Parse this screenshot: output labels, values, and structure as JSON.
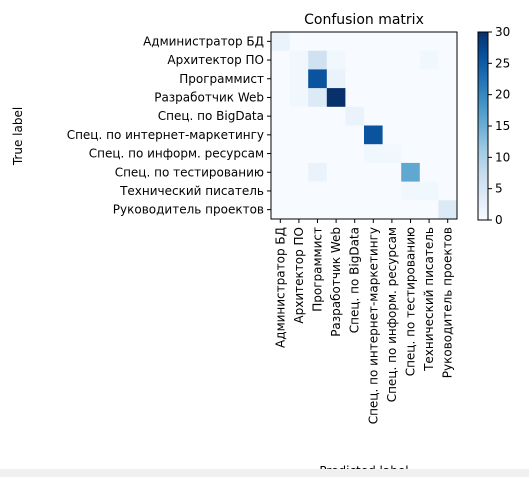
{
  "chart_data": {
    "type": "heatmap",
    "title": "Confusion matrix",
    "xlabel": "Predicted label",
    "ylabel": "True label",
    "labels": [
      "Администратор БД",
      "Архитектор ПО",
      "Программист",
      "Разработчик Web",
      "Спец. по BigData",
      "Спец. по интернет-маркетингу",
      "Спец. по информ. ресурсам",
      "Спец. по тестированию",
      "Технический писатель",
      "Руководитель проектов"
    ],
    "matrix": [
      [
        2,
        0,
        0,
        0,
        0,
        0,
        0,
        0,
        0,
        0
      ],
      [
        0,
        1,
        6,
        1,
        0,
        0,
        0,
        0,
        1,
        0
      ],
      [
        0,
        1,
        26,
        2,
        0,
        0,
        0,
        0,
        0,
        0
      ],
      [
        0,
        1,
        4,
        30,
        0,
        0,
        0,
        0,
        0,
        0
      ],
      [
        0,
        0,
        0,
        0,
        2,
        0,
        0,
        0,
        0,
        0
      ],
      [
        0,
        0,
        0,
        0,
        0,
        26,
        0,
        0,
        0,
        0
      ],
      [
        0,
        0,
        0,
        0,
        0,
        1,
        1,
        0,
        0,
        0
      ],
      [
        0,
        0,
        2,
        0,
        0,
        0,
        0,
        16,
        0,
        0
      ],
      [
        0,
        0,
        0,
        0,
        0,
        0,
        0,
        1,
        1,
        0
      ],
      [
        0,
        0,
        0,
        0,
        0,
        0,
        0,
        0,
        0,
        4
      ]
    ],
    "colorbar": {
      "min": 0,
      "max": 30,
      "ticks": [
        0,
        5,
        10,
        15,
        20,
        25,
        30
      ],
      "colormap": "Blues",
      "colors": [
        "#f7fbff",
        "#deebf7",
        "#c6dbef",
        "#9ecae1",
        "#6baed6",
        "#4292c6",
        "#2171b5",
        "#08519c",
        "#08306b"
      ]
    }
  }
}
